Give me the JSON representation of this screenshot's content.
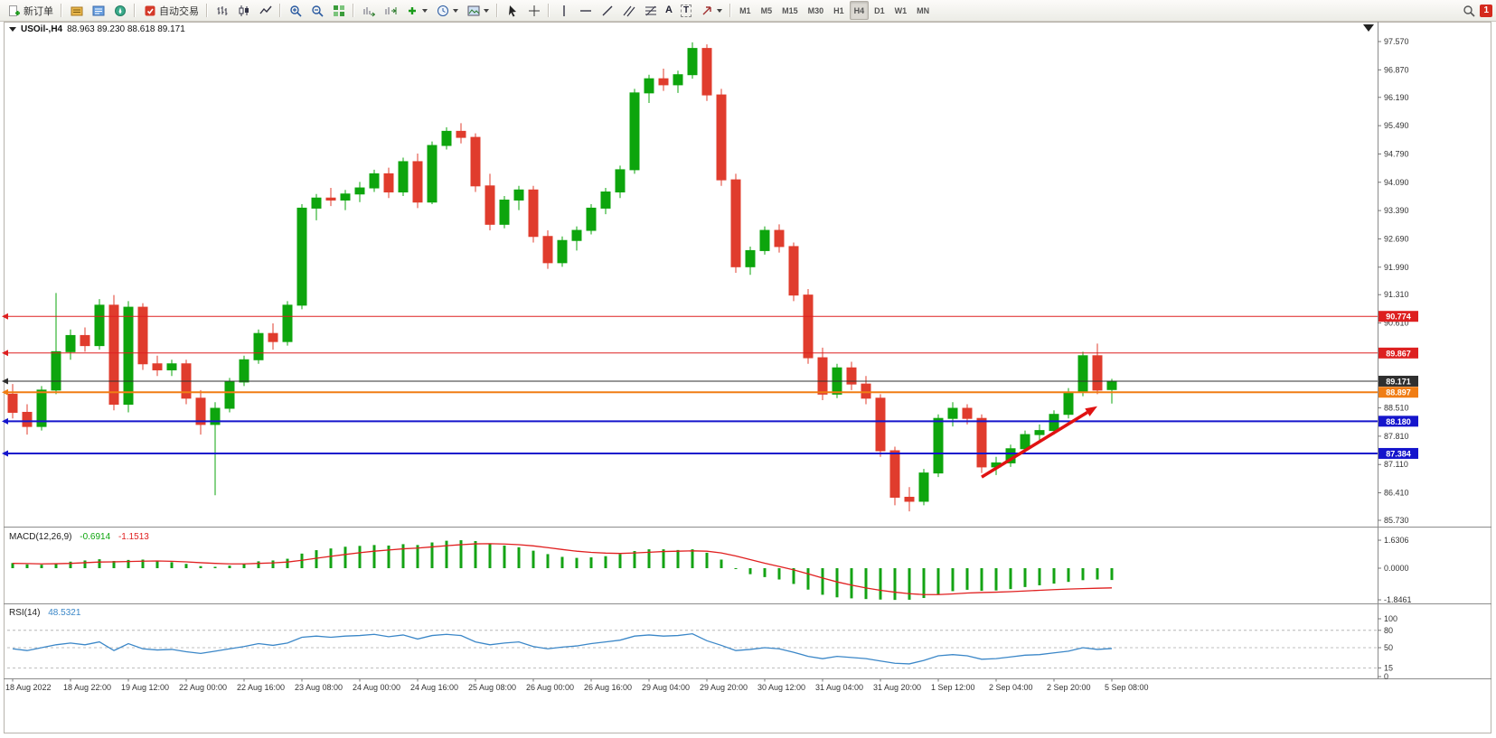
{
  "toolbar": {
    "new_order_label": "新订单",
    "autotrading_label": "自动交易",
    "text_tool_label": "A",
    "label_tool_label": "T",
    "timeframes": [
      "M1",
      "M5",
      "M15",
      "M30",
      "H1",
      "H4",
      "D1",
      "W1",
      "MN"
    ],
    "active_timeframe": "H4",
    "notification_count": "1"
  },
  "chart": {
    "title_symbol": "USOil-,H4",
    "title_ohlc": "88.963 89.230 88.618 89.171"
  },
  "macd": {
    "label": "MACD(12,26,9)",
    "value_main": "-0.6914",
    "value_signal": "-1.1513"
  },
  "rsi": {
    "label": "RSI(14)",
    "value": "48.5321"
  },
  "chart_data": {
    "type": "candlestick+indicators",
    "symbol": "USOil-",
    "timeframe": "H4",
    "current_bar": {
      "open": 88.963,
      "high": 89.23,
      "low": 88.618,
      "close": 89.171
    },
    "colors": {
      "up": "#0da50d",
      "down": "#e03c2d",
      "macd_hist": "#14a314",
      "macd_signal": "#e02020",
      "rsi_line": "#3b87c8",
      "arrow": "#e01212",
      "axis_text": "#333333"
    },
    "y_axis": {
      "min": 85.73,
      "max": 97.57,
      "ticks": [
        "97.570",
        "96.870",
        "96.190",
        "95.490",
        "94.790",
        "94.090",
        "93.390",
        "92.690",
        "91.990",
        "91.310",
        "90.610",
        "88.510",
        "87.810",
        "87.110",
        "86.410",
        "85.730"
      ]
    },
    "candles": [
      [
        88.85,
        89.1,
        88.25,
        88.4
      ],
      [
        88.4,
        88.6,
        87.85,
        88.05
      ],
      [
        88.05,
        89.05,
        87.95,
        88.95
      ],
      [
        88.95,
        91.35,
        88.85,
        89.9
      ],
      [
        89.9,
        90.45,
        89.7,
        90.3
      ],
      [
        90.3,
        90.5,
        89.9,
        90.05
      ],
      [
        90.05,
        91.2,
        89.95,
        91.05
      ],
      [
        91.05,
        91.3,
        88.45,
        88.6
      ],
      [
        88.6,
        91.15,
        88.4,
        91.0
      ],
      [
        91.0,
        91.1,
        89.45,
        89.6
      ],
      [
        89.6,
        89.8,
        89.3,
        89.45
      ],
      [
        89.45,
        89.7,
        89.3,
        89.6
      ],
      [
        89.6,
        89.7,
        88.6,
        88.75
      ],
      [
        88.75,
        88.95,
        87.85,
        88.1
      ],
      [
        88.1,
        88.65,
        86.35,
        88.5
      ],
      [
        88.5,
        89.25,
        88.4,
        89.15
      ],
      [
        89.15,
        89.8,
        89.05,
        89.7
      ],
      [
        89.7,
        90.45,
        89.6,
        90.35
      ],
      [
        90.35,
        90.6,
        89.95,
        90.15
      ],
      [
        90.15,
        91.15,
        90.05,
        91.05
      ],
      [
        91.05,
        93.55,
        90.95,
        93.45
      ],
      [
        93.45,
        93.8,
        93.15,
        93.7
      ],
      [
        93.7,
        93.95,
        93.5,
        93.65
      ],
      [
        93.65,
        93.9,
        93.4,
        93.8
      ],
      [
        93.8,
        94.1,
        93.6,
        93.95
      ],
      [
        93.95,
        94.4,
        93.85,
        94.3
      ],
      [
        94.3,
        94.45,
        93.7,
        93.85
      ],
      [
        93.85,
        94.7,
        93.75,
        94.6
      ],
      [
        94.6,
        94.8,
        93.45,
        93.6
      ],
      [
        93.6,
        95.1,
        93.55,
        95.0
      ],
      [
        95.0,
        95.45,
        94.9,
        95.35
      ],
      [
        95.35,
        95.55,
        95.05,
        95.2
      ],
      [
        95.2,
        95.3,
        93.85,
        94.0
      ],
      [
        94.0,
        94.3,
        92.9,
        93.05
      ],
      [
        93.05,
        93.75,
        92.95,
        93.65
      ],
      [
        93.65,
        94.0,
        93.4,
        93.9
      ],
      [
        93.9,
        94.0,
        92.6,
        92.75
      ],
      [
        92.75,
        92.9,
        91.95,
        92.1
      ],
      [
        92.1,
        92.75,
        92.0,
        92.65
      ],
      [
        92.65,
        93.0,
        92.4,
        92.9
      ],
      [
        92.9,
        93.55,
        92.8,
        93.45
      ],
      [
        93.45,
        93.95,
        93.3,
        93.85
      ],
      [
        93.85,
        94.5,
        93.7,
        94.4
      ],
      [
        94.4,
        96.4,
        94.3,
        96.3
      ],
      [
        96.3,
        96.75,
        96.05,
        96.65
      ],
      [
        96.65,
        96.9,
        96.35,
        96.5
      ],
      [
        96.5,
        96.85,
        96.3,
        96.75
      ],
      [
        96.75,
        97.55,
        96.65,
        97.4
      ],
      [
        97.4,
        97.5,
        96.1,
        96.25
      ],
      [
        96.25,
        96.4,
        94.0,
        94.15
      ],
      [
        94.15,
        94.3,
        91.85,
        92.0
      ],
      [
        92.0,
        92.5,
        91.8,
        92.4
      ],
      [
        92.4,
        93.0,
        92.3,
        92.9
      ],
      [
        92.9,
        93.05,
        92.35,
        92.5
      ],
      [
        92.5,
        92.6,
        91.15,
        91.3
      ],
      [
        91.3,
        91.45,
        89.6,
        89.75
      ],
      [
        89.75,
        90.0,
        88.7,
        88.85
      ],
      [
        88.85,
        89.6,
        88.75,
        89.5
      ],
      [
        89.5,
        89.65,
        88.95,
        89.1
      ],
      [
        89.1,
        89.3,
        88.6,
        88.75
      ],
      [
        88.75,
        88.85,
        87.3,
        87.45
      ],
      [
        87.45,
        87.55,
        86.1,
        86.3
      ],
      [
        86.3,
        86.55,
        85.95,
        86.2
      ],
      [
        86.2,
        87.0,
        86.1,
        86.9
      ],
      [
        86.9,
        88.35,
        86.8,
        88.25
      ],
      [
        88.25,
        88.65,
        88.05,
        88.5
      ],
      [
        88.5,
        88.6,
        88.1,
        88.25
      ],
      [
        88.25,
        88.35,
        86.9,
        87.05
      ],
      [
        87.05,
        87.3,
        86.85,
        87.15
      ],
      [
        87.15,
        87.6,
        87.05,
        87.5
      ],
      [
        87.5,
        87.95,
        87.4,
        87.85
      ],
      [
        87.85,
        88.1,
        87.65,
        87.95
      ],
      [
        87.95,
        88.45,
        87.85,
        88.35
      ],
      [
        88.35,
        89.0,
        88.25,
        88.9
      ],
      [
        88.9,
        89.9,
        88.8,
        89.8
      ],
      [
        89.8,
        90.1,
        88.85,
        88.95
      ],
      [
        88.963,
        89.23,
        88.618,
        89.171
      ]
    ],
    "hlines": [
      {
        "value": 90.774,
        "label": "90.774",
        "color": "#dd2020",
        "width": 1
      },
      {
        "value": 89.867,
        "label": "89.867",
        "color": "#dd2020",
        "width": 1
      },
      {
        "value": 89.171,
        "label": "89.171",
        "color": "#2f2f2f",
        "width": 1,
        "role": "current-price"
      },
      {
        "value": 88.897,
        "label": "88.897",
        "color": "#f07d14",
        "width": 2
      },
      {
        "value": 88.18,
        "label": "88.180",
        "color": "#1515cc",
        "width": 2
      },
      {
        "value": 87.384,
        "label": "87.384",
        "color": "#1515cc",
        "width": 2
      }
    ],
    "arrow": {
      "from_bar": 67,
      "from_price": 86.8,
      "to_bar": 75,
      "to_price": 88.55
    },
    "macd": {
      "params": "12,26,9",
      "scale_labels": [
        "1.6306",
        "0.0000",
        "-1.8461"
      ],
      "scale": {
        "max": 1.6306,
        "zero": 0.0,
        "min": -1.8461
      },
      "histogram": [
        0.3,
        0.22,
        0.2,
        0.28,
        0.38,
        0.45,
        0.52,
        0.42,
        0.48,
        0.5,
        0.42,
        0.35,
        0.25,
        0.12,
        0.08,
        0.15,
        0.25,
        0.4,
        0.45,
        0.55,
        0.85,
        1.05,
        1.15,
        1.25,
        1.3,
        1.35,
        1.32,
        1.4,
        1.35,
        1.5,
        1.6,
        1.63,
        1.58,
        1.45,
        1.32,
        1.22,
        1.02,
        0.82,
        0.66,
        0.6,
        0.63,
        0.7,
        0.82,
        1.0,
        1.1,
        1.1,
        1.06,
        1.1,
        0.9,
        0.5,
        0.0,
        -0.35,
        -0.52,
        -0.66,
        -0.92,
        -1.25,
        -1.55,
        -1.7,
        -1.76,
        -1.8,
        -1.83,
        -1.85,
        -1.84,
        -1.74,
        -1.52,
        -1.34,
        -1.26,
        -1.32,
        -1.3,
        -1.22,
        -1.1,
        -1.0,
        -0.9,
        -0.8,
        -0.7,
        -0.66,
        -0.69
      ],
      "signal": [
        0.28,
        0.27,
        0.25,
        0.26,
        0.28,
        0.32,
        0.36,
        0.37,
        0.39,
        0.41,
        0.42,
        0.4,
        0.37,
        0.32,
        0.28,
        0.25,
        0.25,
        0.28,
        0.31,
        0.36,
        0.46,
        0.58,
        0.69,
        0.8,
        0.9,
        0.99,
        1.06,
        1.13,
        1.17,
        1.24,
        1.31,
        1.37,
        1.42,
        1.43,
        1.41,
        1.37,
        1.3,
        1.2,
        1.09,
        0.99,
        0.92,
        0.88,
        0.86,
        0.89,
        0.93,
        0.97,
        0.99,
        1.01,
        0.99,
        0.89,
        0.71,
        0.5,
        0.29,
        0.1,
        -0.1,
        -0.33,
        -0.57,
        -0.8,
        -0.99,
        -1.15,
        -1.29,
        -1.4,
        -1.49,
        -1.54,
        -1.54,
        -1.5,
        -1.45,
        -1.42,
        -1.4,
        -1.37,
        -1.33,
        -1.29,
        -1.25,
        -1.22,
        -1.19,
        -1.17,
        -1.15
      ]
    },
    "rsi": {
      "period": 14,
      "scale_labels": [
        "100",
        "80",
        "50",
        "15",
        "0"
      ],
      "levels": [
        80,
        50,
        15
      ],
      "values": [
        48,
        45,
        50,
        55,
        58,
        55,
        60,
        45,
        57,
        48,
        46,
        47,
        43,
        40,
        44,
        48,
        52,
        57,
        54,
        58,
        68,
        70,
        68,
        70,
        71,
        73,
        69,
        72,
        65,
        71,
        73,
        71,
        60,
        55,
        58,
        60,
        52,
        48,
        51,
        53,
        57,
        60,
        63,
        70,
        72,
        70,
        71,
        74,
        62,
        54,
        45,
        47,
        50,
        48,
        42,
        35,
        31,
        35,
        33,
        31,
        27,
        23,
        22,
        28,
        36,
        38,
        36,
        30,
        31,
        34,
        37,
        38,
        41,
        44,
        50,
        47,
        48.53
      ]
    },
    "time_labels": [
      "18 Aug 2022",
      "18 Aug 22:00",
      "19 Aug 12:00",
      "22 Aug 00:00",
      "22 Aug 16:00",
      "23 Aug 08:00",
      "24 Aug 00:00",
      "24 Aug 16:00",
      "25 Aug 08:00",
      "26 Aug 00:00",
      "26 Aug 16:00",
      "29 Aug 04:00",
      "29 Aug 20:00",
      "30 Aug 12:00",
      "31 Aug 04:00",
      "31 Aug 20:00",
      "1 Sep 12:00",
      "2 Sep 04:00",
      "2 Sep 20:00",
      "5 Sep 08:00"
    ]
  }
}
